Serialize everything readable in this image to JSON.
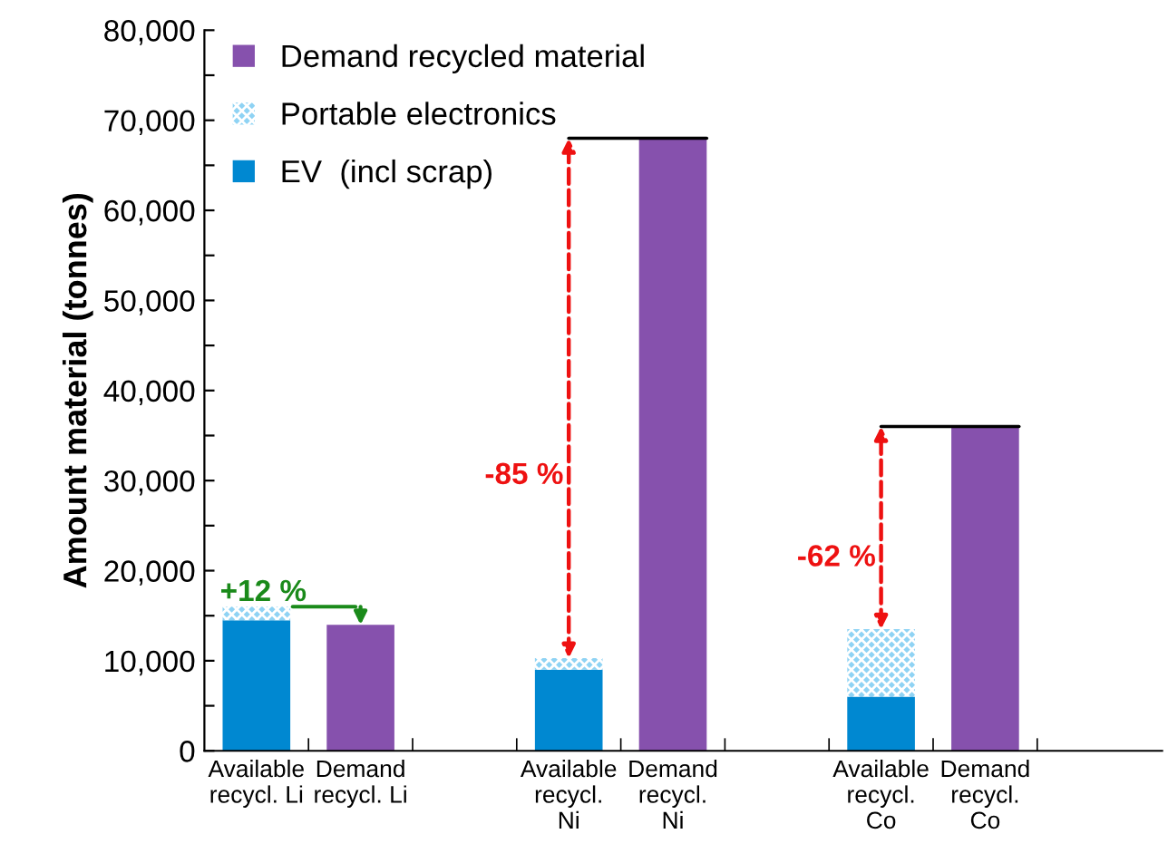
{
  "chart_data": {
    "type": "bar",
    "stacked": true,
    "ylabel": "Amount material (tonnes)",
    "categories": [
      "Available\nrecycl. Li",
      "Demand\nrecycl. Li",
      null,
      "Available\nrecycl.\nNi",
      "Demand\nrecycl.\nNi",
      null,
      "Available\nrecycl.\nCo",
      "Demand\nrecycl.\nCo",
      null
    ],
    "series": [
      {
        "name": "EV  (incl scrap)",
        "color": "#0088d1",
        "values": [
          14500,
          null,
          null,
          9000,
          null,
          null,
          6000,
          null,
          null
        ]
      },
      {
        "name": "Portable electronics",
        "color": "#8fd3f4",
        "values": [
          1500,
          null,
          null,
          1300,
          null,
          null,
          7500,
          null,
          null
        ]
      },
      {
        "name": "Demand recycled material",
        "color": "#8651ad",
        "values": [
          null,
          14000,
          null,
          null,
          68000,
          null,
          null,
          36000,
          null
        ]
      }
    ],
    "ylim": [
      0,
      80000
    ],
    "yticks": [
      {
        "value": 0,
        "label": "0"
      },
      {
        "value": 5000,
        "label": null
      },
      {
        "value": 10000,
        "label": "10,000"
      },
      {
        "value": 15000,
        "label": null
      },
      {
        "value": 20000,
        "label": "20,000"
      },
      {
        "value": 25000,
        "label": null
      },
      {
        "value": 30000,
        "label": "30,000"
      },
      {
        "value": 35000,
        "label": null
      },
      {
        "value": 40000,
        "label": "40,000"
      },
      {
        "value": 45000,
        "label": null
      },
      {
        "value": 50000,
        "label": "50,000"
      },
      {
        "value": 55000,
        "label": null
      },
      {
        "value": 60000,
        "label": "60,000"
      },
      {
        "value": 65000,
        "label": null
      },
      {
        "value": 70000,
        "label": "70,000"
      },
      {
        "value": 75000,
        "label": null
      },
      {
        "value": 80000,
        "label": "80,000"
      }
    ],
    "legend": "top left",
    "grid": false,
    "annotations": [
      "+12 %",
      "-85 %",
      "-62 %"
    ]
  }
}
